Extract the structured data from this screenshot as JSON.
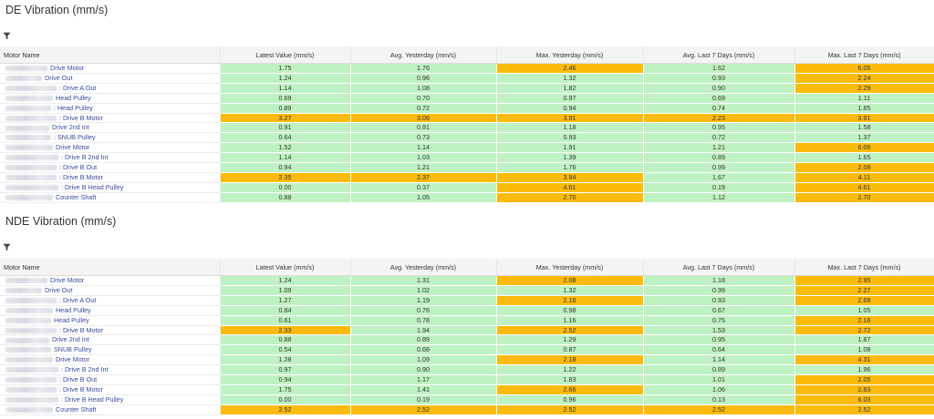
{
  "de": {
    "title": "DE Vibration (mm/s)",
    "columns": [
      "Motor Name",
      "Latest Value (mm/s)",
      "Avg. Yesterday (mm/s)",
      "Max. Yesterday (mm/s)",
      "Avg. Last 7 Days (mm/s)",
      "Max. Last 7 Days (mm/s)"
    ],
    "rows": [
      {
        "name": "Drive Motor",
        "values": [
          "1.75",
          "1.76",
          "2.46",
          "1.62",
          "6.05"
        ],
        "status": [
          "g",
          "g",
          "o",
          "g",
          "o"
        ]
      },
      {
        "name": "Drive Out",
        "values": [
          "1.24",
          "0.96",
          "1.32",
          "0.93",
          "2.24"
        ],
        "status": [
          "g",
          "g",
          "g",
          "g",
          "o"
        ]
      },
      {
        "name": ": Drive A Out",
        "values": [
          "1.14",
          "1.08",
          "1.82",
          "0.90",
          "2.29"
        ],
        "status": [
          "g",
          "g",
          "g",
          "g",
          "o"
        ]
      },
      {
        "name": "Head Pulley",
        "values": [
          "0.69",
          "0.70",
          "0.97",
          "0.69",
          "1.11"
        ],
        "status": [
          "g",
          "g",
          "g",
          "g",
          "g"
        ]
      },
      {
        "name": ": Head Pulley",
        "values": [
          "0.89",
          "0.72",
          "0.94",
          "0.74",
          "1.85"
        ],
        "status": [
          "g",
          "g",
          "g",
          "g",
          "g"
        ]
      },
      {
        "name": ": Drive B Motor",
        "values": [
          "3.27",
          "3.06",
          "3.91",
          "2.23",
          "3.91"
        ],
        "status": [
          "o",
          "o",
          "o",
          "o",
          "o"
        ]
      },
      {
        "name": "Drive 2nd Int",
        "values": [
          "0.91",
          "0.91",
          "1.18",
          "0.95",
          "1.58"
        ],
        "status": [
          "g",
          "g",
          "g",
          "g",
          "g"
        ]
      },
      {
        "name": ": SNUB Pulley",
        "values": [
          "0.64",
          "0.73",
          "0.93",
          "0.72",
          "1.37"
        ],
        "status": [
          "g",
          "g",
          "g",
          "g",
          "g"
        ]
      },
      {
        "name": "Drive Motor",
        "values": [
          "1.52",
          "1.14",
          "1.91",
          "1.21",
          "6.09"
        ],
        "status": [
          "g",
          "g",
          "g",
          "g",
          "o"
        ]
      },
      {
        "name": ": Drive B 2nd Int",
        "values": [
          "1.14",
          "1.03",
          "1.39",
          "0.89",
          "1.65"
        ],
        "status": [
          "g",
          "g",
          "g",
          "g",
          "g"
        ]
      },
      {
        "name": ": Drive B Out",
        "values": [
          "0.94",
          "1.21",
          "1.76",
          "0.99",
          "2.08"
        ],
        "status": [
          "g",
          "g",
          "g",
          "g",
          "o"
        ]
      },
      {
        "name": ": Drive B Motor",
        "values": [
          "2.35",
          "2.37",
          "3.94",
          "1.67",
          "4.11"
        ],
        "status": [
          "o",
          "o",
          "o",
          "g",
          "o"
        ]
      },
      {
        "name": ": Drive B Head Pulley",
        "values": [
          "0.00",
          "0.37",
          "4.61",
          "0.19",
          "4.61"
        ],
        "status": [
          "g",
          "g",
          "o",
          "g",
          "o"
        ]
      },
      {
        "name": "Counter Shaft",
        "values": [
          "0.88",
          "1.05",
          "2.70",
          "1.12",
          "2.70"
        ],
        "status": [
          "g",
          "g",
          "o",
          "g",
          "o"
        ]
      }
    ]
  },
  "nde": {
    "title": "NDE Vibration (mm/s)",
    "columns": [
      "Motor Name",
      "Latest Value (mm/s)",
      "Avg. Yesterday (mm/s)",
      "Max. Yesterday (mm/s)",
      "Avg. Last 7 Days (mm/s)",
      "Max. Last 7 Days (mm/s)"
    ],
    "rows": [
      {
        "name": "Drive Motor",
        "values": [
          "1.24",
          "1.31",
          "2.08",
          "1.18",
          "2.95"
        ],
        "status": [
          "g",
          "g",
          "o",
          "g",
          "o"
        ]
      },
      {
        "name": "Drive Out",
        "values": [
          "1.09",
          "1.02",
          "1.32",
          "0.99",
          "2.27"
        ],
        "status": [
          "g",
          "g",
          "g",
          "g",
          "o"
        ]
      },
      {
        "name": ": Drive A Out",
        "values": [
          "1.27",
          "1.19",
          "2.16",
          "0.93",
          "2.68"
        ],
        "status": [
          "g",
          "g",
          "o",
          "g",
          "o"
        ]
      },
      {
        "name": "Head Pulley",
        "values": [
          "0.84",
          "0.76",
          "0.98",
          "0.67",
          "1.05"
        ],
        "status": [
          "g",
          "g",
          "g",
          "g",
          "g"
        ]
      },
      {
        "name": "Head Pulley",
        "values": [
          "0.61",
          "0.78",
          "1.16",
          "0.75",
          "2.16"
        ],
        "status": [
          "g",
          "g",
          "g",
          "g",
          "o"
        ]
      },
      {
        "name": ": Drive B Motor",
        "values": [
          "2.33",
          "1.94",
          "2.52",
          "1.53",
          "2.72"
        ],
        "status": [
          "o",
          "g",
          "o",
          "g",
          "o"
        ]
      },
      {
        "name": "Drive 2nd Int",
        "values": [
          "0.88",
          "0.89",
          "1.29",
          "0.95",
          "1.87"
        ],
        "status": [
          "g",
          "g",
          "g",
          "g",
          "g"
        ]
      },
      {
        "name": "SNUB Pulley",
        "values": [
          "0.54",
          "0.68",
          "0.87",
          "0.64",
          "1.08"
        ],
        "status": [
          "g",
          "g",
          "g",
          "g",
          "g"
        ]
      },
      {
        "name": "Drive Motor",
        "values": [
          "1.28",
          "1.09",
          "2.18",
          "1.14",
          "4.31"
        ],
        "status": [
          "g",
          "g",
          "o",
          "g",
          "o"
        ]
      },
      {
        "name": ": Drive B 2nd Int",
        "values": [
          "0.97",
          "0.90",
          "1.22",
          "0.89",
          "1.96"
        ],
        "status": [
          "g",
          "g",
          "g",
          "g",
          "g"
        ]
      },
      {
        "name": ": Drive B Out",
        "values": [
          "0.94",
          "1.17",
          "1.83",
          "1.01",
          "2.05"
        ],
        "status": [
          "g",
          "g",
          "g",
          "g",
          "o"
        ]
      },
      {
        "name": ": Drive B Motor",
        "values": [
          "1.75",
          "1.41",
          "2.66",
          "1.06",
          "2.83"
        ],
        "status": [
          "g",
          "g",
          "o",
          "g",
          "o"
        ]
      },
      {
        "name": ": Drive B Head Pulley",
        "values": [
          "0.00",
          "0.19",
          "0.96",
          "0.13",
          "6.03"
        ],
        "status": [
          "g",
          "g",
          "g",
          "g",
          "o"
        ]
      },
      {
        "name": "Counter Shaft",
        "values": [
          "2.52",
          "2.52",
          "2.52",
          "2.52",
          "2.52"
        ],
        "status": [
          "o",
          "o",
          "o",
          "o",
          "o"
        ]
      }
    ]
  },
  "colors": {
    "ok": "#bff2c2",
    "alert": "#fbbb0c"
  },
  "icons": {
    "filter": "filter-funnel-icon"
  }
}
